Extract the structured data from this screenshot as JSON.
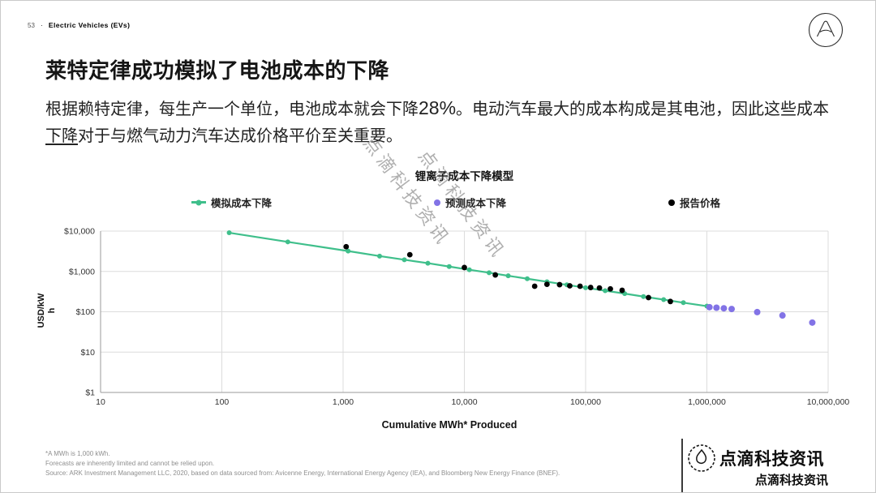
{
  "header": {
    "page_number": "53",
    "dot": "·",
    "section_label": "Electric Vehicles (EVs)"
  },
  "title": "莱特定律成功模拟了电池成本的下降",
  "body": {
    "part1": "根据赖特定律，每生产一个单位，电池成本就会下降",
    "percent": "28%",
    "part2": "。电动汽车最大的成本构成是其电池，因此这些成本",
    "underlined": "下降",
    "part3": "对于与燃气动力汽车达成价格平价至关重要。"
  },
  "watermark_text": "点滴科技资讯",
  "chart_data": {
    "type": "line",
    "title": "锂离子成本下降模型",
    "xlabel": "Cumulative MWh* Produced",
    "ylabel": "USD/kWh",
    "x_scale": "log",
    "y_scale": "log",
    "xlim_log": [
      1,
      7
    ],
    "ylim_log": [
      0,
      4
    ],
    "x_ticks": [
      "10",
      "100",
      "1,000",
      "10,000",
      "100,000",
      "1,000,000",
      "10,000,000"
    ],
    "y_ticks": [
      "$1",
      "$10",
      "$100",
      "$1,000",
      "$10,000"
    ],
    "grid": true,
    "legend_position": "top",
    "series": [
      {
        "name": "模拟成本下降",
        "type": "line+markers",
        "color": "#3fbf8b",
        "marker_r": 3,
        "points": [
          [
            115,
            9100
          ],
          [
            350,
            5400
          ],
          [
            1100,
            3200
          ],
          [
            2000,
            2400
          ],
          [
            3200,
            1950
          ],
          [
            5000,
            1600
          ],
          [
            7500,
            1320
          ],
          [
            11000,
            1100
          ],
          [
            16000,
            930
          ],
          [
            23000,
            780
          ],
          [
            33000,
            660
          ],
          [
            48000,
            555
          ],
          [
            70000,
            465
          ],
          [
            100000,
            395
          ],
          [
            145000,
            333
          ],
          [
            210000,
            282
          ],
          [
            300000,
            238
          ],
          [
            440000,
            200
          ],
          [
            640000,
            168
          ],
          [
            1000000,
            138
          ]
        ]
      },
      {
        "name": "预测成本下降",
        "type": "markers",
        "color": "#8273e6",
        "marker_r": 4,
        "points": [
          [
            1050000,
            130
          ],
          [
            1200000,
            126
          ],
          [
            1380000,
            122
          ],
          [
            1600000,
            117
          ],
          [
            2600000,
            98
          ],
          [
            4200000,
            81
          ],
          [
            7400000,
            54
          ]
        ]
      },
      {
        "name": "报告价格",
        "type": "markers",
        "color": "#000000",
        "marker_r": 3.4,
        "points": [
          [
            1060,
            4100
          ],
          [
            3550,
            2600
          ],
          [
            10000,
            1250
          ],
          [
            18000,
            820
          ],
          [
            38000,
            430
          ],
          [
            48000,
            480
          ],
          [
            61000,
            470
          ],
          [
            74000,
            440
          ],
          [
            90000,
            430
          ],
          [
            110000,
            400
          ],
          [
            130000,
            390
          ],
          [
            160000,
            370
          ],
          [
            200000,
            340
          ],
          [
            330000,
            225
          ],
          [
            500000,
            180
          ]
        ]
      }
    ]
  },
  "footnotes": [
    "*A MWh is 1,000 kWh.",
    "Forecasts are inherently limited and cannot be relied upon.",
    "Source: ARK Investment Management LLC, 2020, based on data sourced from: Avicenne Energy, International Energy Agency (IEA), and Bloomberg New Energy Finance (BNEF)."
  ],
  "brand": {
    "name_large": "点滴科技资讯",
    "name_small": "点滴科技资讯"
  }
}
